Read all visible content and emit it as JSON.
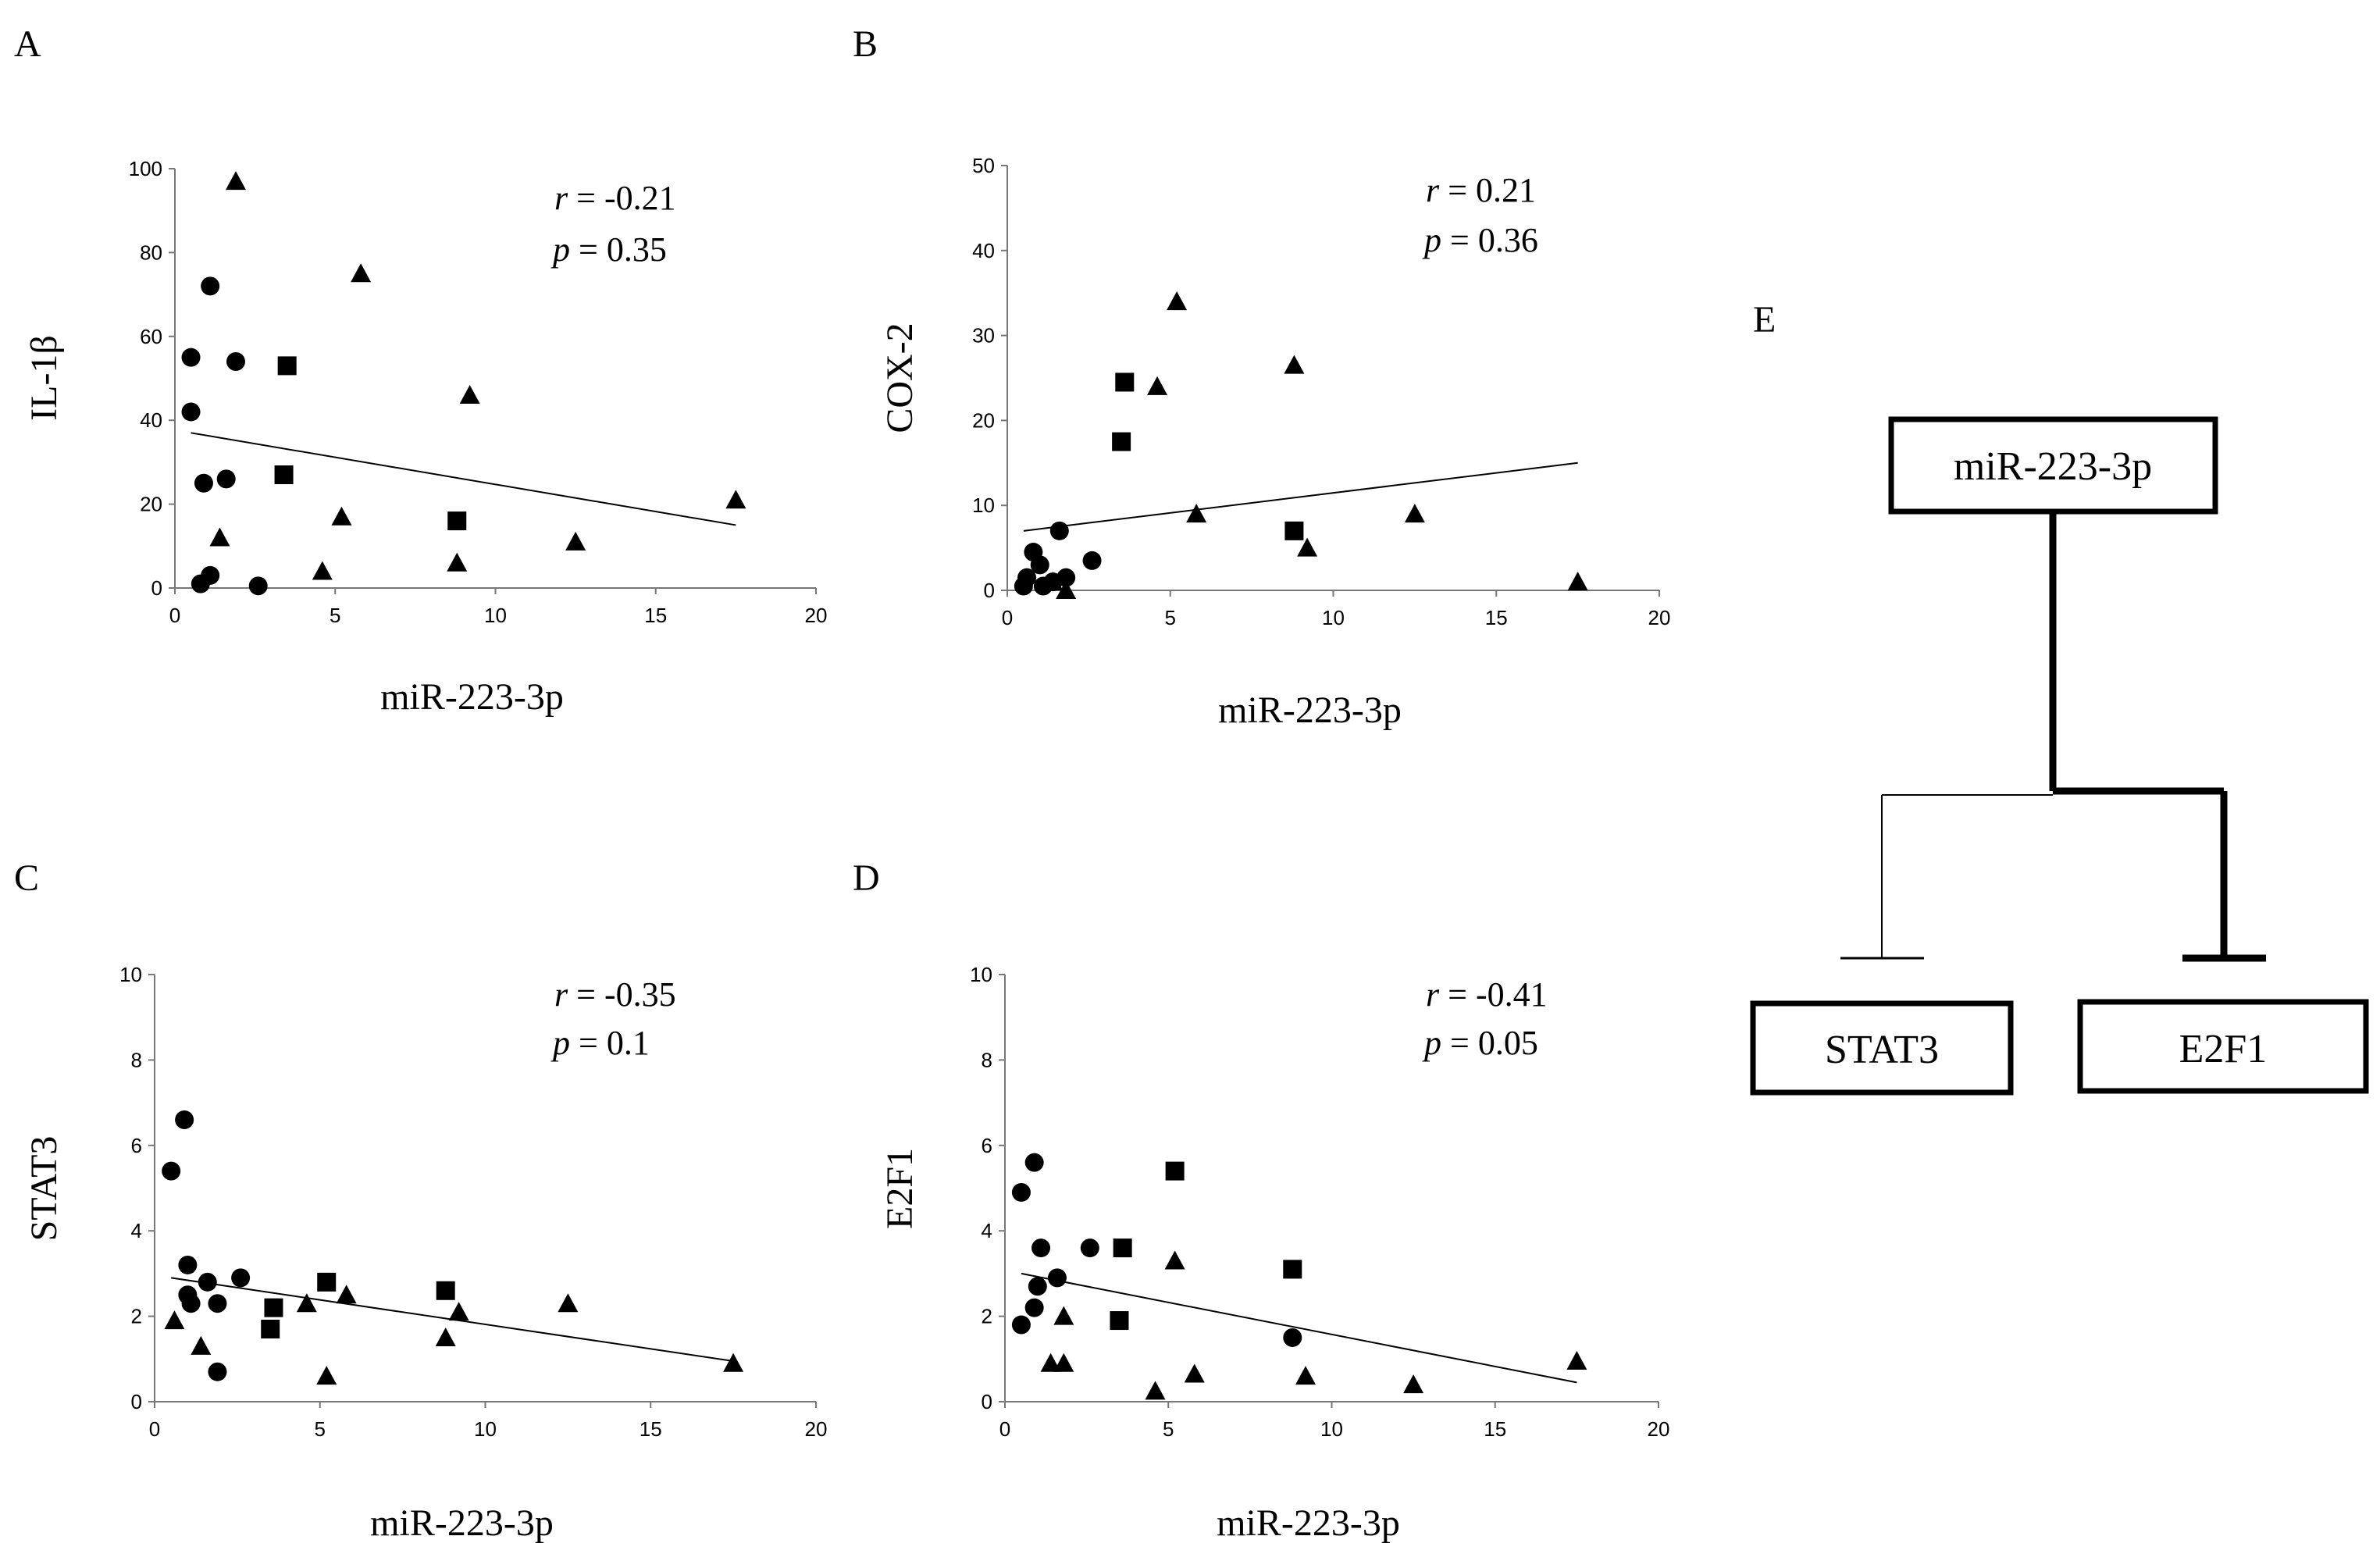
{
  "figure": {
    "diagram": {
      "panel_letter": "E",
      "source": "miR-223-3p",
      "targets": [
        "STAT3",
        "E2F1"
      ]
    }
  },
  "chart_data": [
    {
      "panel": "A",
      "type": "scatter",
      "xlabel": "miR-223-3p",
      "ylabel": "IL-1β",
      "xlim": [
        0,
        20
      ],
      "ylim": [
        0,
        100
      ],
      "xticks": [
        0,
        5,
        10,
        15,
        20
      ],
      "yticks": [
        0,
        20,
        40,
        60,
        80,
        100
      ],
      "stats": {
        "r_label": "r",
        "r_value": " = -0.21",
        "p_label": "p",
        "p_value": " = 0.35"
      },
      "trendline": {
        "x": [
          0.5,
          17.5
        ],
        "y": [
          37,
          15
        ]
      },
      "series": [
        {
          "name": "circle",
          "marker": "circle",
          "points": [
            [
              0.5,
              55
            ],
            [
              0.5,
              42
            ],
            [
              0.9,
              25
            ],
            [
              1.1,
              72
            ],
            [
              1.6,
              26
            ],
            [
              1.9,
              54
            ],
            [
              0.8,
              1
            ],
            [
              1.1,
              3
            ],
            [
              2.6,
              0.5
            ]
          ]
        },
        {
          "name": "square",
          "marker": "square",
          "points": [
            [
              3.5,
              53
            ],
            [
              3.4,
              27
            ],
            [
              8.8,
              16
            ]
          ]
        },
        {
          "name": "triangle",
          "marker": "triangle",
          "points": [
            [
              1.9,
              97
            ],
            [
              5.8,
              75
            ],
            [
              9.2,
              46
            ],
            [
              1.4,
              12
            ],
            [
              5.2,
              17
            ],
            [
              4.6,
              4
            ],
            [
              8.8,
              6
            ],
            [
              12.5,
              11
            ],
            [
              17.5,
              21
            ]
          ]
        }
      ]
    },
    {
      "panel": "B",
      "type": "scatter",
      "xlabel": "miR-223-3p",
      "ylabel": "COX-2",
      "xlim": [
        0,
        20
      ],
      "ylim": [
        0,
        50
      ],
      "xticks": [
        0,
        5,
        10,
        15,
        20
      ],
      "yticks": [
        0,
        10,
        20,
        30,
        40,
        50
      ],
      "stats": {
        "r_label": "r",
        "r_value": " = 0.21",
        "p_label": "p",
        "p_value": " = 0.36"
      },
      "trendline": {
        "x": [
          0.5,
          17.5
        ],
        "y": [
          7,
          15
        ]
      },
      "series": [
        {
          "name": "circle",
          "marker": "circle",
          "points": [
            [
              0.5,
              0.5
            ],
            [
              0.6,
              1.5
            ],
            [
              0.8,
              4.5
            ],
            [
              1.0,
              3
            ],
            [
              1.1,
              0.5
            ],
            [
              1.4,
              1
            ],
            [
              1.6,
              7
            ],
            [
              1.8,
              1.5
            ],
            [
              2.6,
              3.5
            ]
          ]
        },
        {
          "name": "square",
          "marker": "square",
          "points": [
            [
              3.6,
              24.5
            ],
            [
              3.5,
              17.5
            ],
            [
              8.8,
              7
            ]
          ]
        },
        {
          "name": "triangle",
          "marker": "triangle",
          "points": [
            [
              5.2,
              34
            ],
            [
              4.6,
              24
            ],
            [
              8.8,
              26.5
            ],
            [
              5.8,
              9
            ],
            [
              9.2,
              5
            ],
            [
              12.5,
              9
            ],
            [
              17.5,
              1
            ],
            [
              1.8,
              0
            ],
            [
              1.4,
              1
            ]
          ]
        }
      ]
    },
    {
      "panel": "C",
      "type": "scatter",
      "xlabel": "miR-223-3p",
      "ylabel": "STAT3",
      "xlim": [
        0,
        20
      ],
      "ylim": [
        0,
        10
      ],
      "xticks": [
        0,
        5,
        10,
        15,
        20
      ],
      "yticks": [
        0,
        2,
        4,
        6,
        8,
        10
      ],
      "stats": {
        "r_label": "r",
        "r_value": " = -0.35",
        "p_label": "p",
        "p_value": " = 0.1"
      },
      "trendline": {
        "x": [
          0.5,
          17.5
        ],
        "y": [
          2.9,
          0.95
        ]
      },
      "series": [
        {
          "name": "circle",
          "marker": "circle",
          "points": [
            [
              0.5,
              5.4
            ],
            [
              0.9,
              6.6
            ],
            [
              1.0,
              3.2
            ],
            [
              1.0,
              2.5
            ],
            [
              1.1,
              2.3
            ],
            [
              1.6,
              2.8
            ],
            [
              1.9,
              2.3
            ],
            [
              1.9,
              0.7
            ],
            [
              2.6,
              2.9
            ]
          ]
        },
        {
          "name": "square",
          "marker": "square",
          "points": [
            [
              5.2,
              2.8
            ],
            [
              3.6,
              2.2
            ],
            [
              3.5,
              1.7
            ],
            [
              8.8,
              2.6
            ]
          ]
        },
        {
          "name": "triangle",
          "marker": "triangle",
          "points": [
            [
              0.6,
              1.9
            ],
            [
              1.4,
              1.3
            ],
            [
              4.6,
              2.3
            ],
            [
              5.8,
              2.5
            ],
            [
              5.2,
              0.6
            ],
            [
              8.8,
              1.5
            ],
            [
              9.2,
              2.1
            ],
            [
              12.5,
              2.3
            ],
            [
              17.5,
              0.9
            ]
          ]
        }
      ]
    },
    {
      "panel": "D",
      "type": "scatter",
      "xlabel": "miR-223-3p",
      "ylabel": "E2F1",
      "xlim": [
        0,
        20
      ],
      "ylim": [
        0,
        10
      ],
      "xticks": [
        0,
        5,
        10,
        15,
        20
      ],
      "yticks": [
        0,
        2,
        4,
        6,
        8,
        10
      ],
      "stats": {
        "r_label": "r",
        "r_value": " = -0.41",
        "p_label": "p",
        "p_value": " = 0.05"
      },
      "trendline": {
        "x": [
          0.5,
          17.5
        ],
        "y": [
          3.0,
          0.45
        ]
      },
      "series": [
        {
          "name": "circle",
          "marker": "circle",
          "points": [
            [
              0.5,
              4.9
            ],
            [
              0.9,
              5.6
            ],
            [
              1.1,
              3.6
            ],
            [
              1.0,
              2.7
            ],
            [
              0.9,
              2.2
            ],
            [
              0.5,
              1.8
            ],
            [
              1.6,
              2.9
            ],
            [
              2.6,
              3.6
            ],
            [
              8.8,
              1.5
            ]
          ]
        },
        {
          "name": "square",
          "marker": "square",
          "points": [
            [
              5.2,
              5.4
            ],
            [
              3.6,
              3.6
            ],
            [
              3.5,
              1.9
            ],
            [
              8.8,
              3.1
            ]
          ]
        },
        {
          "name": "triangle",
          "marker": "triangle",
          "points": [
            [
              1.4,
              0.9
            ],
            [
              1.8,
              0.9
            ],
            [
              1.8,
              2.0
            ],
            [
              4.6,
              0.25
            ],
            [
              5.2,
              3.3
            ],
            [
              5.8,
              0.65
            ],
            [
              9.2,
              0.6
            ],
            [
              12.5,
              0.4
            ],
            [
              17.5,
              0.95
            ]
          ]
        }
      ]
    }
  ]
}
